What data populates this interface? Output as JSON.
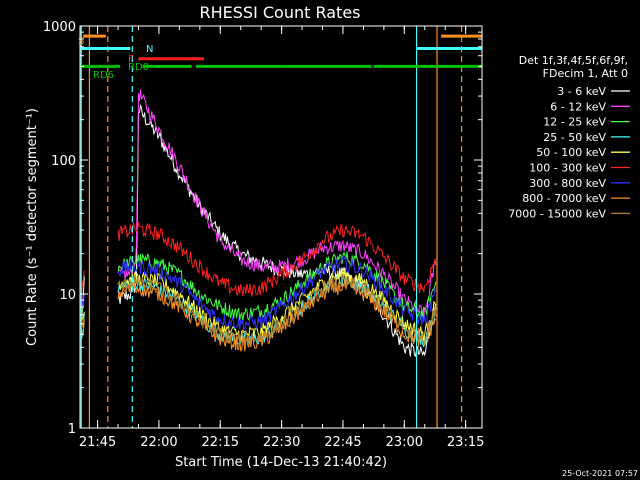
{
  "chart_data": {
    "type": "line",
    "title": "RHESSI Count Rates",
    "xlabel": "Start Time (14-Dec-13 21:40:42)",
    "ylabel": "Count Rate (s⁻¹ detector segment⁻¹)",
    "y_scale": "log",
    "ylim": [
      1,
      1000
    ],
    "xlim_minutes": [
      "21:40:42",
      "23:19:00"
    ],
    "x_ticks": [
      "21:45",
      "22:00",
      "22:15",
      "22:30",
      "22:45",
      "23:00",
      "23:15"
    ],
    "y_ticks": [
      "1",
      "10",
      "100",
      "1000"
    ],
    "grid": false,
    "legend_position": "right",
    "legend_header": [
      "Det 1f,3f,4f,5f,6f,9f,",
      "FDecim 1, Att 0"
    ],
    "timestamp": "25-Oct-2021 07:57",
    "series": [
      {
        "name": "3 - 6 keV",
        "color": "#ffffff",
        "anchors": [
          [
            "21:41",
            6
          ],
          [
            "21:42",
            15
          ],
          [
            "21:48",
            null
          ],
          [
            "21:50",
            9
          ],
          [
            "21:53",
            10
          ],
          [
            "21:54.5",
            12
          ],
          [
            "21:55",
            240
          ],
          [
            "22:00",
            150
          ],
          [
            "22:05",
            80
          ],
          [
            "22:10",
            45
          ],
          [
            "22:15",
            28
          ],
          [
            "22:20",
            20
          ],
          [
            "22:25",
            17
          ],
          [
            "22:30",
            15
          ],
          [
            "22:35",
            14
          ],
          [
            "22:40",
            15
          ],
          [
            "22:45",
            14
          ],
          [
            "22:50",
            11
          ],
          [
            "22:55",
            7
          ],
          [
            "23:00",
            4
          ],
          [
            "23:05",
            3.5
          ],
          [
            "23:08",
            10
          ]
        ]
      },
      {
        "name": "6 - 12 keV",
        "color": "#ff40ff",
        "anchors": [
          [
            "21:41",
            7
          ],
          [
            "21:42",
            11
          ],
          [
            "21:48",
            null
          ],
          [
            "21:50",
            14
          ],
          [
            "21:53",
            14
          ],
          [
            "21:54.5",
            20
          ],
          [
            "21:55",
            320
          ],
          [
            "22:00",
            170
          ],
          [
            "22:05",
            90
          ],
          [
            "22:10",
            45
          ],
          [
            "22:15",
            25
          ],
          [
            "22:20",
            18
          ],
          [
            "22:25",
            16
          ],
          [
            "22:30",
            16
          ],
          [
            "22:35",
            18
          ],
          [
            "22:40",
            22
          ],
          [
            "22:45",
            23
          ],
          [
            "22:50",
            20
          ],
          [
            "22:55",
            14
          ],
          [
            "23:00",
            9
          ],
          [
            "23:05",
            7
          ],
          [
            "23:08",
            20
          ]
        ]
      },
      {
        "name": "12 - 25 keV",
        "color": "#40ff40",
        "anchors": [
          [
            "21:41",
            7
          ],
          [
            "21:42",
            9
          ],
          [
            "21:48",
            null
          ],
          [
            "21:50",
            16
          ],
          [
            "21:53",
            17
          ],
          [
            "21:55",
            18
          ],
          [
            "22:00",
            17
          ],
          [
            "22:05",
            14
          ],
          [
            "22:10",
            10
          ],
          [
            "22:15",
            8
          ],
          [
            "22:20",
            7
          ],
          [
            "22:25",
            7.5
          ],
          [
            "22:30",
            9
          ],
          [
            "22:35",
            12
          ],
          [
            "22:40",
            16
          ],
          [
            "22:45",
            19
          ],
          [
            "22:50",
            17
          ],
          [
            "22:55",
            12
          ],
          [
            "23:00",
            8
          ],
          [
            "23:05",
            7
          ],
          [
            "23:08",
            13
          ]
        ]
      },
      {
        "name": "25 - 50 keV",
        "color": "#40ffff",
        "anchors": [
          [
            "21:41",
            5
          ],
          [
            "21:42",
            7
          ],
          [
            "21:48",
            null
          ],
          [
            "21:50",
            11
          ],
          [
            "21:53",
            12
          ],
          [
            "21:55",
            12
          ],
          [
            "22:00",
            11
          ],
          [
            "22:05",
            9
          ],
          [
            "22:10",
            6.5
          ],
          [
            "22:15",
            5
          ],
          [
            "22:20",
            4.5
          ],
          [
            "22:25",
            4.7
          ],
          [
            "22:30",
            6
          ],
          [
            "22:35",
            8
          ],
          [
            "22:40",
            11
          ],
          [
            "22:45",
            13
          ],
          [
            "22:50",
            11.5
          ],
          [
            "22:55",
            8
          ],
          [
            "23:00",
            5.5
          ],
          [
            "23:05",
            4.5
          ],
          [
            "23:08",
            8
          ]
        ]
      },
      {
        "name": "50 - 100 keV",
        "color": "#ffff40",
        "anchors": [
          [
            "21:41",
            6
          ],
          [
            "21:42",
            8
          ],
          [
            "21:48",
            null
          ],
          [
            "21:50",
            12
          ],
          [
            "21:53",
            13
          ],
          [
            "21:55",
            13
          ],
          [
            "22:00",
            12.5
          ],
          [
            "22:05",
            10
          ],
          [
            "22:10",
            7.2
          ],
          [
            "22:15",
            5.5
          ],
          [
            "22:20",
            5
          ],
          [
            "22:25",
            5.2
          ],
          [
            "22:30",
            6.8
          ],
          [
            "22:35",
            9
          ],
          [
            "22:40",
            12
          ],
          [
            "22:45",
            14
          ],
          [
            "22:50",
            12.5
          ],
          [
            "22:55",
            9
          ],
          [
            "23:00",
            6
          ],
          [
            "23:05",
            5
          ],
          [
            "23:08",
            9
          ]
        ]
      },
      {
        "name": "100 - 300 keV",
        "color": "#ff2020",
        "anchors": [
          [
            "21:41",
            10
          ],
          [
            "21:42",
            15
          ],
          [
            "21:48",
            null
          ],
          [
            "21:50",
            28
          ],
          [
            "21:53",
            30
          ],
          [
            "21:55",
            31
          ],
          [
            "22:00",
            28
          ],
          [
            "22:05",
            22
          ],
          [
            "22:10",
            16
          ],
          [
            "22:15",
            12
          ],
          [
            "22:20",
            10.5
          ],
          [
            "22:25",
            11
          ],
          [
            "22:30",
            14
          ],
          [
            "22:35",
            18
          ],
          [
            "22:40",
            25
          ],
          [
            "22:45",
            30
          ],
          [
            "22:50",
            27
          ],
          [
            "22:55",
            19
          ],
          [
            "23:00",
            13
          ],
          [
            "23:05",
            11
          ],
          [
            "23:08",
            20
          ]
        ]
      },
      {
        "name": "300 - 800 keV",
        "color": "#3030ff",
        "anchors": [
          [
            "21:41",
            8
          ],
          [
            "21:42",
            10
          ],
          [
            "21:48",
            null
          ],
          [
            "21:50",
            15
          ],
          [
            "21:53",
            16
          ],
          [
            "21:55",
            16
          ],
          [
            "22:00",
            15
          ],
          [
            "22:05",
            12
          ],
          [
            "22:10",
            8.5
          ],
          [
            "22:15",
            6.5
          ],
          [
            "22:20",
            6
          ],
          [
            "22:25",
            6.2
          ],
          [
            "22:30",
            8
          ],
          [
            "22:35",
            11
          ],
          [
            "22:40",
            15
          ],
          [
            "22:45",
            17
          ],
          [
            "22:50",
            15
          ],
          [
            "22:55",
            11
          ],
          [
            "23:00",
            7.5
          ],
          [
            "23:05",
            6.3
          ],
          [
            "23:08",
            11
          ]
        ]
      },
      {
        "name": "800 - 7000 keV",
        "color": "#ff9020",
        "anchors": [
          [
            "21:41",
            5
          ],
          [
            "21:42",
            6
          ],
          [
            "21:48",
            null
          ],
          [
            "21:50",
            10
          ],
          [
            "21:53",
            11
          ],
          [
            "21:55",
            11
          ],
          [
            "22:00",
            10
          ],
          [
            "22:05",
            8
          ],
          [
            "22:10",
            6
          ],
          [
            "22:15",
            4.6
          ],
          [
            "22:20",
            4.2
          ],
          [
            "22:25",
            4.4
          ],
          [
            "22:30",
            5.5
          ],
          [
            "22:35",
            7.5
          ],
          [
            "22:40",
            10
          ],
          [
            "22:45",
            11.5
          ],
          [
            "22:50",
            10
          ],
          [
            "22:55",
            7.5
          ],
          [
            "23:00",
            5
          ],
          [
            "23:05",
            4.3
          ],
          [
            "23:08",
            7
          ]
        ]
      },
      {
        "name": "7000 - 15000 keV",
        "color": "#b08030",
        "anchors": [
          [
            "21:41",
            5.5
          ],
          [
            "21:42",
            7
          ],
          [
            "21:48",
            null
          ],
          [
            "21:50",
            11
          ],
          [
            "21:53",
            12
          ],
          [
            "21:55",
            12
          ],
          [
            "22:00",
            11
          ],
          [
            "22:05",
            8.8
          ],
          [
            "22:10",
            6.5
          ],
          [
            "22:15",
            5
          ],
          [
            "22:20",
            4.6
          ],
          [
            "22:25",
            4.8
          ],
          [
            "22:30",
            6
          ],
          [
            "22:35",
            8
          ],
          [
            "22:40",
            11
          ],
          [
            "22:45",
            12.5
          ],
          [
            "22:50",
            11
          ],
          [
            "22:55",
            8
          ],
          [
            "23:00",
            5.5
          ],
          [
            "23:05",
            4.7
          ],
          [
            "23:08",
            8
          ]
        ]
      }
    ],
    "state_bars": [
      {
        "label": "S",
        "color": "#ff9020",
        "segments": [
          [
            "21:41.5",
            "21:47"
          ],
          [
            "23:09",
            "23:19"
          ]
        ],
        "level": 840
      },
      {
        "label": "N",
        "color": "#40ffff",
        "segments": [
          [
            "21:40.7",
            "21:53"
          ],
          [
            "23:03",
            "23:19"
          ]
        ],
        "level": 680
      },
      {
        "label": "F",
        "color": "#ff2020",
        "segments": [
          [
            "21:55",
            "22:11"
          ]
        ],
        "level": 570
      },
      {
        "label": "RD0",
        "color": "#00c000",
        "segments": [
          [
            "21:40.7",
            "21:50.5"
          ],
          [
            "21:56",
            "22:08"
          ],
          [
            "22:09",
            "22:31"
          ],
          [
            "22:31",
            "22:52"
          ],
          [
            "22:52.5",
            "23:19"
          ]
        ],
        "level": 500
      },
      {
        "label": "RD6",
        "color": "#00c000",
        "segments": [],
        "level": 440
      }
    ],
    "vertical_markers": [
      {
        "time": "21:41",
        "color": "#40ffff",
        "style": "solid"
      },
      {
        "time": "21:43",
        "color": "#ff9020",
        "style": "solid"
      },
      {
        "time": "21:47.5",
        "color": "#ff9020",
        "style": "dashed"
      },
      {
        "time": "21:53.5",
        "color": "#40ffff",
        "style": "dashed"
      },
      {
        "time": "23:03",
        "color": "#40ffff",
        "style": "solid"
      },
      {
        "time": "23:08",
        "color": "#ff9020",
        "style": "solid"
      },
      {
        "time": "23:14",
        "color": "#ff9020",
        "style": "dashed"
      }
    ]
  }
}
